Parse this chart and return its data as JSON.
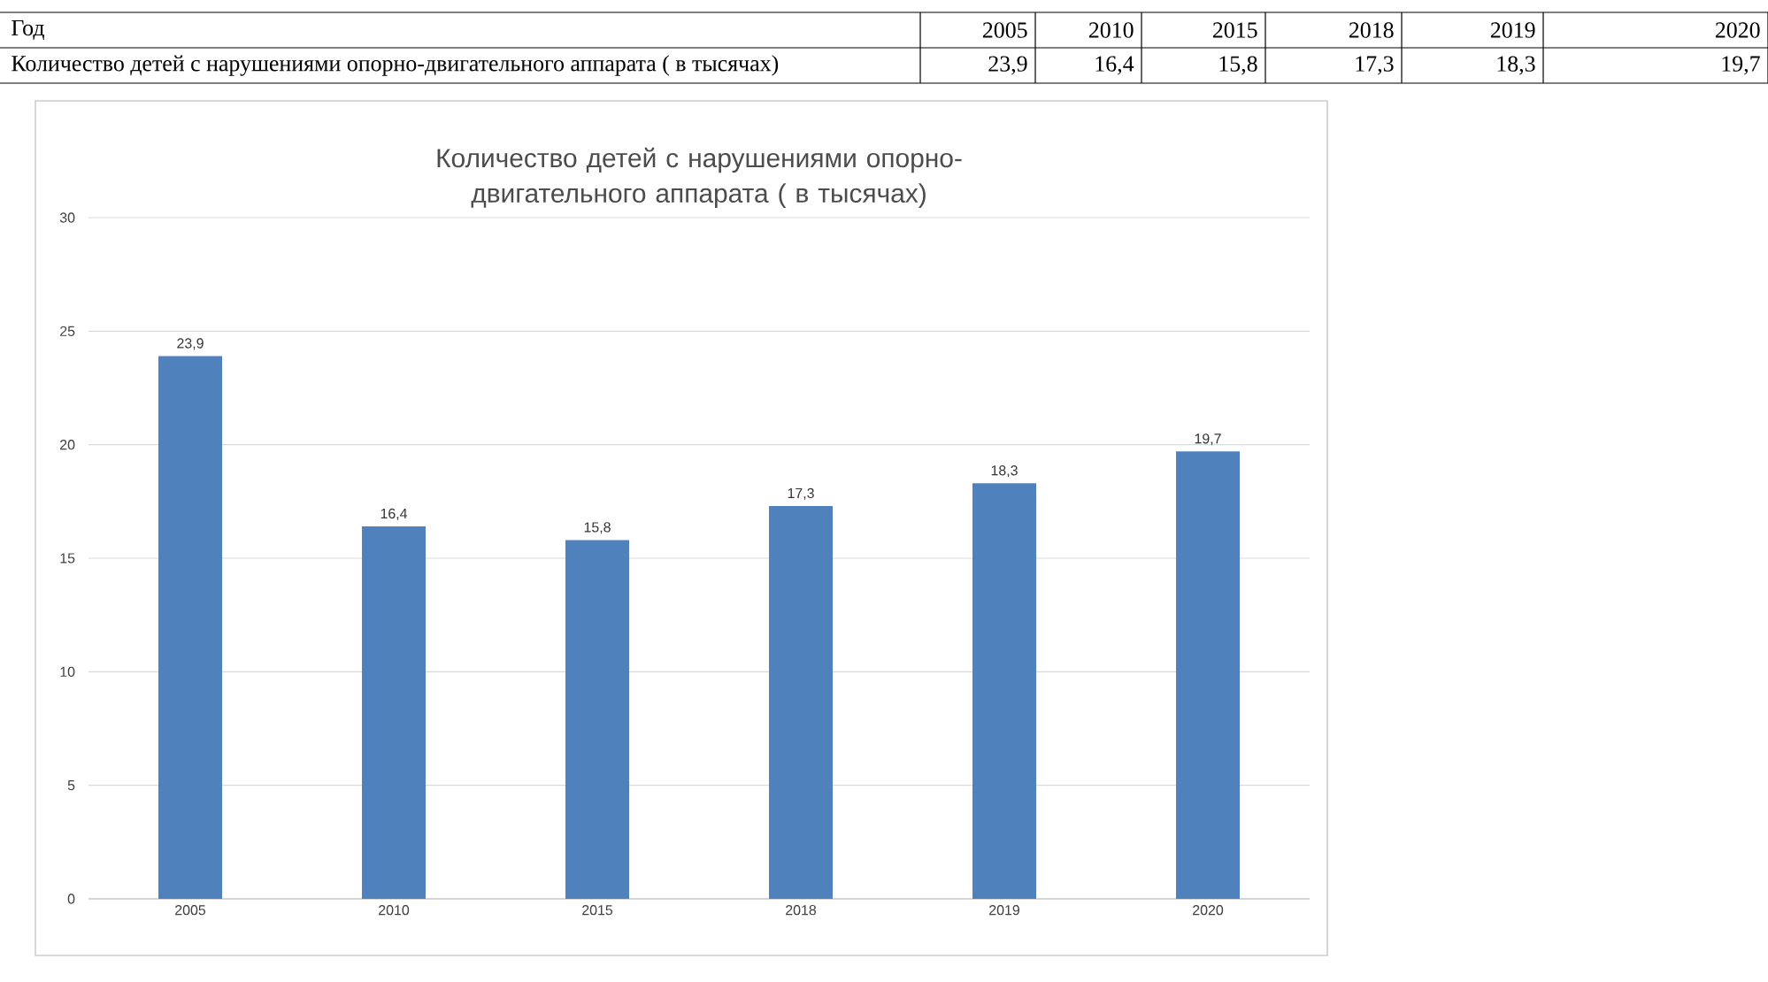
{
  "chart_data": {
    "type": "bar",
    "title": "Количество детей с нарушениями  опорно-двигательного аппарата ( в тысячах)",
    "categories": [
      "2005",
      "2010",
      "2015",
      "2018",
      "2019",
      "2020"
    ],
    "values": [
      23.9,
      16.4,
      15.8,
      17.3,
      18.3,
      19.7
    ],
    "value_labels": [
      "23,9",
      "16,4",
      "15,8",
      "17,3",
      "18,3",
      "19,7"
    ],
    "color": "#4f81bd",
    "ylim": [
      0,
      30
    ],
    "yticks": [
      0,
      5,
      10,
      15,
      20,
      25,
      30
    ],
    "grid": "y",
    "annotations": [
      "Год",
      "Количество детей с нарушениями  опорно-двигательного аппарата ( в тысячах)"
    ]
  }
}
